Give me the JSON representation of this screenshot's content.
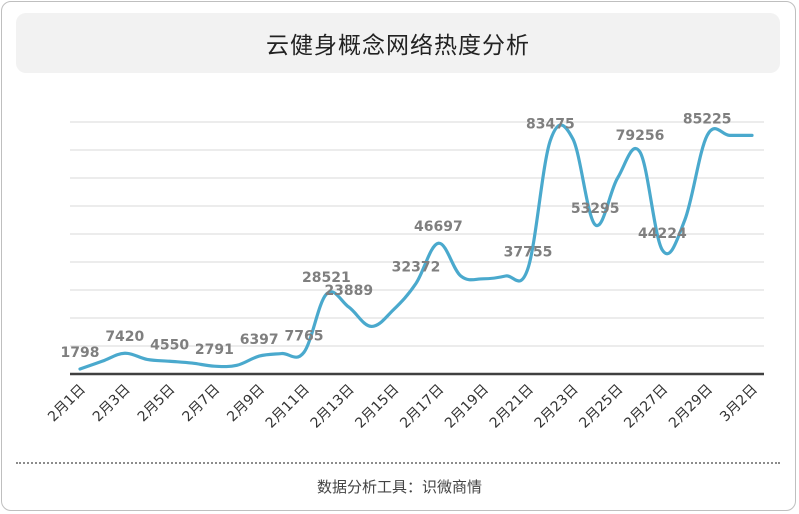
{
  "header": {
    "title": "云健身概念网络热度分析"
  },
  "footer": {
    "text": "数据分析工具：识微商情"
  },
  "colors": {
    "line": "#4aa9cd",
    "grid": "#d9d9d9",
    "axis": "#404040",
    "label": "#7f7f7f",
    "tick": "#333333"
  },
  "chart_data": {
    "type": "line",
    "title": "云健身概念网络热度分析",
    "xlabel": "",
    "ylabel": "",
    "ylim": [
      0,
      90000
    ],
    "grid": true,
    "legend": "none",
    "categories": [
      "2月1日",
      "2月2日",
      "2月3日",
      "2月4日",
      "2月5日",
      "2月6日",
      "2月7日",
      "2月8日",
      "2月9日",
      "2月10日",
      "2月11日",
      "2月12日",
      "2月13日",
      "2月14日",
      "2月15日",
      "2月16日",
      "2月17日",
      "2月18日",
      "2月19日",
      "2月20日",
      "2月21日",
      "2月22日",
      "2月23日",
      "2月24日",
      "2月25日",
      "2月26日",
      "2月27日",
      "2月28日",
      "2月29日",
      "3月1日",
      "3月2日"
    ],
    "tick_labels": [
      "2月1日",
      "2月3日",
      "2月5日",
      "2月7日",
      "2月9日",
      "2月11日",
      "2月13日",
      "2月15日",
      "2月17日",
      "2月19日",
      "2月21日",
      "2月23日",
      "2月25日",
      "2月27日",
      "2月29日",
      "3月2日"
    ],
    "series": [
      {
        "values": [
          1798,
          4600,
          7420,
          5200,
          4550,
          3900,
          2791,
          3100,
          6397,
          7300,
          7765,
          28521,
          23889,
          17000,
          23000,
          32372,
          46697,
          35000,
          34000,
          35000,
          37755,
          83475,
          84000,
          53295,
          70000,
          79256,
          44224,
          55000,
          85225,
          85225,
          85225
        ]
      }
    ],
    "data_labels": [
      {
        "index": 0,
        "text": "1798"
      },
      {
        "index": 2,
        "text": "7420"
      },
      {
        "index": 4,
        "text": "4550"
      },
      {
        "index": 6,
        "text": "2791"
      },
      {
        "index": 8,
        "text": "6397"
      },
      {
        "index": 10,
        "text": "7765"
      },
      {
        "index": 11,
        "text": "28521"
      },
      {
        "index": 12,
        "text": "23889"
      },
      {
        "index": 15,
        "text": "32372"
      },
      {
        "index": 16,
        "text": "46697"
      },
      {
        "index": 20,
        "text": "37755"
      },
      {
        "index": 21,
        "text": "83475"
      },
      {
        "index": 23,
        "text": "53295"
      },
      {
        "index": 25,
        "text": "79256"
      },
      {
        "index": 26,
        "text": "44224"
      },
      {
        "index": 28,
        "text": "85225"
      }
    ]
  }
}
